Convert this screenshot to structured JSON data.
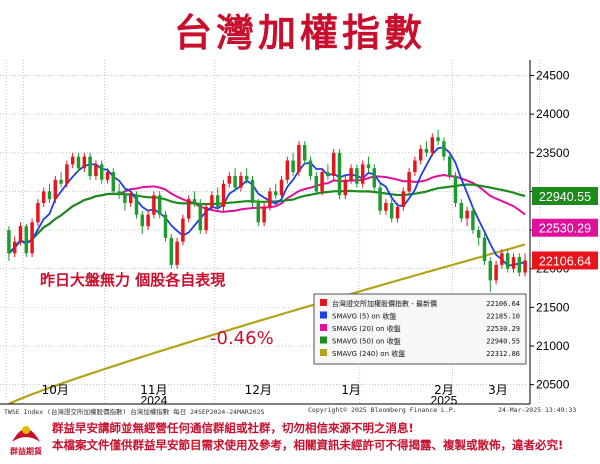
{
  "title": "台灣加權指數",
  "chart_data": {
    "type": "candlestick",
    "y_ticks": [
      20500,
      21000,
      21500,
      22000,
      22500,
      23000,
      23500,
      24000,
      24500
    ],
    "ylim": [
      20250,
      24700
    ],
    "x_labels": [
      "10月",
      "11月",
      "12月",
      "1月",
      "2月",
      "3月"
    ],
    "year_labels": [
      "2024",
      "2025"
    ],
    "candles": [
      [
        22500,
        22200,
        22550,
        22100
      ],
      [
        22200,
        22350,
        22420,
        22150
      ],
      [
        22350,
        22550,
        22600,
        22300
      ],
      [
        22550,
        22200,
        22580,
        22150
      ],
      [
        22200,
        22600,
        22650,
        22150
      ],
      [
        22600,
        22850,
        22900,
        22550
      ],
      [
        22850,
        23000,
        23050,
        22800
      ],
      [
        23000,
        22900,
        23100,
        22850
      ],
      [
        22900,
        23150,
        23200,
        22850
      ],
      [
        23150,
        23100,
        23250,
        23050
      ],
      [
        23100,
        23350,
        23400,
        23050
      ],
      [
        23350,
        23450,
        23500,
        23300
      ],
      [
        23450,
        23300,
        23500,
        23250
      ],
      [
        23300,
        23450,
        23500,
        23250
      ],
      [
        23450,
        23200,
        23500,
        23150
      ],
      [
        23200,
        23350,
        23400,
        23150
      ],
      [
        23350,
        23150,
        23400,
        23100
      ],
      [
        23150,
        23250,
        23300,
        23100
      ],
      [
        23250,
        23000,
        23300,
        22950
      ],
      [
        23000,
        22950,
        23100,
        22900
      ],
      [
        22950,
        22850,
        23050,
        22750
      ],
      [
        22850,
        22950,
        23000,
        22800
      ],
      [
        22950,
        22700,
        23000,
        22650
      ],
      [
        22700,
        22550,
        22750,
        22450
      ],
      [
        22550,
        22700,
        22750,
        22500
      ],
      [
        22700,
        22950,
        23000,
        22650
      ],
      [
        22950,
        22700,
        23000,
        22650
      ],
      [
        22700,
        22400,
        22750,
        22350
      ],
      [
        22400,
        22050,
        22450,
        22000
      ],
      [
        22050,
        22350,
        22400,
        22000
      ],
      [
        22350,
        22650,
        22700,
        22300
      ],
      [
        22650,
        22900,
        22950,
        22600
      ],
      [
        22900,
        22850,
        23000,
        22800
      ],
      [
        22850,
        22500,
        22900,
        22450
      ],
      [
        22500,
        22800,
        22850,
        22450
      ],
      [
        22800,
        22950,
        23000,
        22750
      ],
      [
        22950,
        22800,
        23050,
        22750
      ],
      [
        22800,
        23100,
        23150,
        22750
      ],
      [
        23100,
        23200,
        23250,
        23050
      ],
      [
        23200,
        23050,
        23300,
        23000
      ],
      [
        23050,
        23200,
        23250,
        23000
      ],
      [
        23200,
        23150,
        23300,
        23100
      ],
      [
        23150,
        22850,
        23200,
        22800
      ],
      [
        22850,
        22600,
        22900,
        22550
      ],
      [
        22600,
        22800,
        22850,
        22550
      ],
      [
        22800,
        23000,
        23050,
        22750
      ],
      [
        23000,
        22950,
        23100,
        22900
      ],
      [
        22950,
        23150,
        23200,
        22900
      ],
      [
        23150,
        23400,
        23450,
        23100
      ],
      [
        23400,
        23250,
        23500,
        23200
      ],
      [
        23250,
        23600,
        23650,
        23200
      ],
      [
        23600,
        23400,
        23650,
        23350
      ],
      [
        23400,
        23200,
        23450,
        23150
      ],
      [
        23200,
        23000,
        23250,
        22950
      ],
      [
        23000,
        23250,
        23300,
        22950
      ],
      [
        23250,
        23200,
        23350,
        23150
      ],
      [
        23200,
        23500,
        23550,
        23150
      ],
      [
        23500,
        22950,
        23550,
        22900
      ],
      [
        22950,
        23150,
        23200,
        22900
      ],
      [
        23150,
        23300,
        23350,
        23100
      ],
      [
        23300,
        23100,
        23350,
        23050
      ],
      [
        23100,
        23350,
        23400,
        23050
      ],
      [
        23350,
        23300,
        23450,
        23250
      ],
      [
        23300,
        23050,
        23350,
        23000
      ],
      [
        23050,
        22750,
        23100,
        22700
      ],
      [
        22750,
        22850,
        22900,
        22700
      ],
      [
        22850,
        22650,
        22900,
        22600
      ],
      [
        22650,
        22800,
        22850,
        22600
      ],
      [
        22800,
        23000,
        23050,
        22750
      ],
      [
        23000,
        23250,
        23300,
        22950
      ],
      [
        23250,
        23400,
        23450,
        23200
      ],
      [
        23400,
        23550,
        23600,
        23350
      ],
      [
        23550,
        23500,
        23650,
        23450
      ],
      [
        23500,
        23700,
        23750,
        23450
      ],
      [
        23700,
        23650,
        23800,
        23600
      ],
      [
        23650,
        23450,
        23700,
        23400
      ],
      [
        23450,
        23200,
        23500,
        23150
      ],
      [
        23200,
        22850,
        23250,
        22800
      ],
      [
        22850,
        22650,
        22900,
        22600
      ],
      [
        22650,
        22750,
        22800,
        22550
      ],
      [
        22750,
        22500,
        22800,
        22450
      ],
      [
        22500,
        22400,
        22550,
        22300
      ],
      [
        22400,
        22100,
        22450,
        22050
      ],
      [
        22100,
        21850,
        22150,
        21700
      ],
      [
        21850,
        22050,
        22100,
        21800
      ],
      [
        22050,
        22200,
        22250,
        22000
      ],
      [
        22200,
        22000,
        22250,
        21950
      ],
      [
        22000,
        22150,
        22200,
        21950
      ],
      [
        22150,
        21950,
        22200,
        21900
      ],
      [
        21950,
        22106.64,
        22200,
        21900
      ]
    ],
    "series": [
      {
        "name": "台灣證交所加權股價指數 - 最新價",
        "color": "#e8141c",
        "last_value": 22106.64
      },
      {
        "name": "SMAVG (5)  on 收盤",
        "color": "#1f3fe0",
        "last_value": 22185.1
      },
      {
        "name": "SMAVG (20)  on 收盤",
        "color": "#e0109a",
        "last_value": 22530.29
      },
      {
        "name": "SMAVG (50)  on 收盤",
        "color": "#1e8a1e",
        "last_value": 22940.55
      },
      {
        "name": "SMAVG (240)  on 收盤",
        "color": "#b3a21a",
        "last_value": 22312.86
      }
    ],
    "ma240": {
      "start": 20250,
      "end": 22312.86
    },
    "right_labels": [
      {
        "text": "22940.55",
        "value": 22940.55,
        "color": "#1e8a1e"
      },
      {
        "text": "22530.29",
        "value": 22530.29,
        "color": "#e0109a"
      },
      {
        "text": "22106.64",
        "value": 22106.64,
        "color": "#e8141c"
      }
    ]
  },
  "annotations": {
    "comment": "昨日大盤無力  個股各自表現",
    "change": "-0.46%"
  },
  "footer": {
    "source_left": "TWSE Index (台灣證交所加權股價指數) 台灣加權指數  每日 24SEP2024-24MAR2025",
    "copyright": "Copyright© 2025 Bloomberg Finance L.P.",
    "timestamp": "24-Mar-2025 13:49:33"
  },
  "logo_text": "群益期貨",
  "disclaimer": [
    "群益早安講師並無經營任何通信群組或社群，切勿相信來源不明之消息!",
    "本檔案文件僅供群益早安節目需求使用及參考，相關資訊未經許可不得揭露、複製或散佈，違者必究!"
  ]
}
